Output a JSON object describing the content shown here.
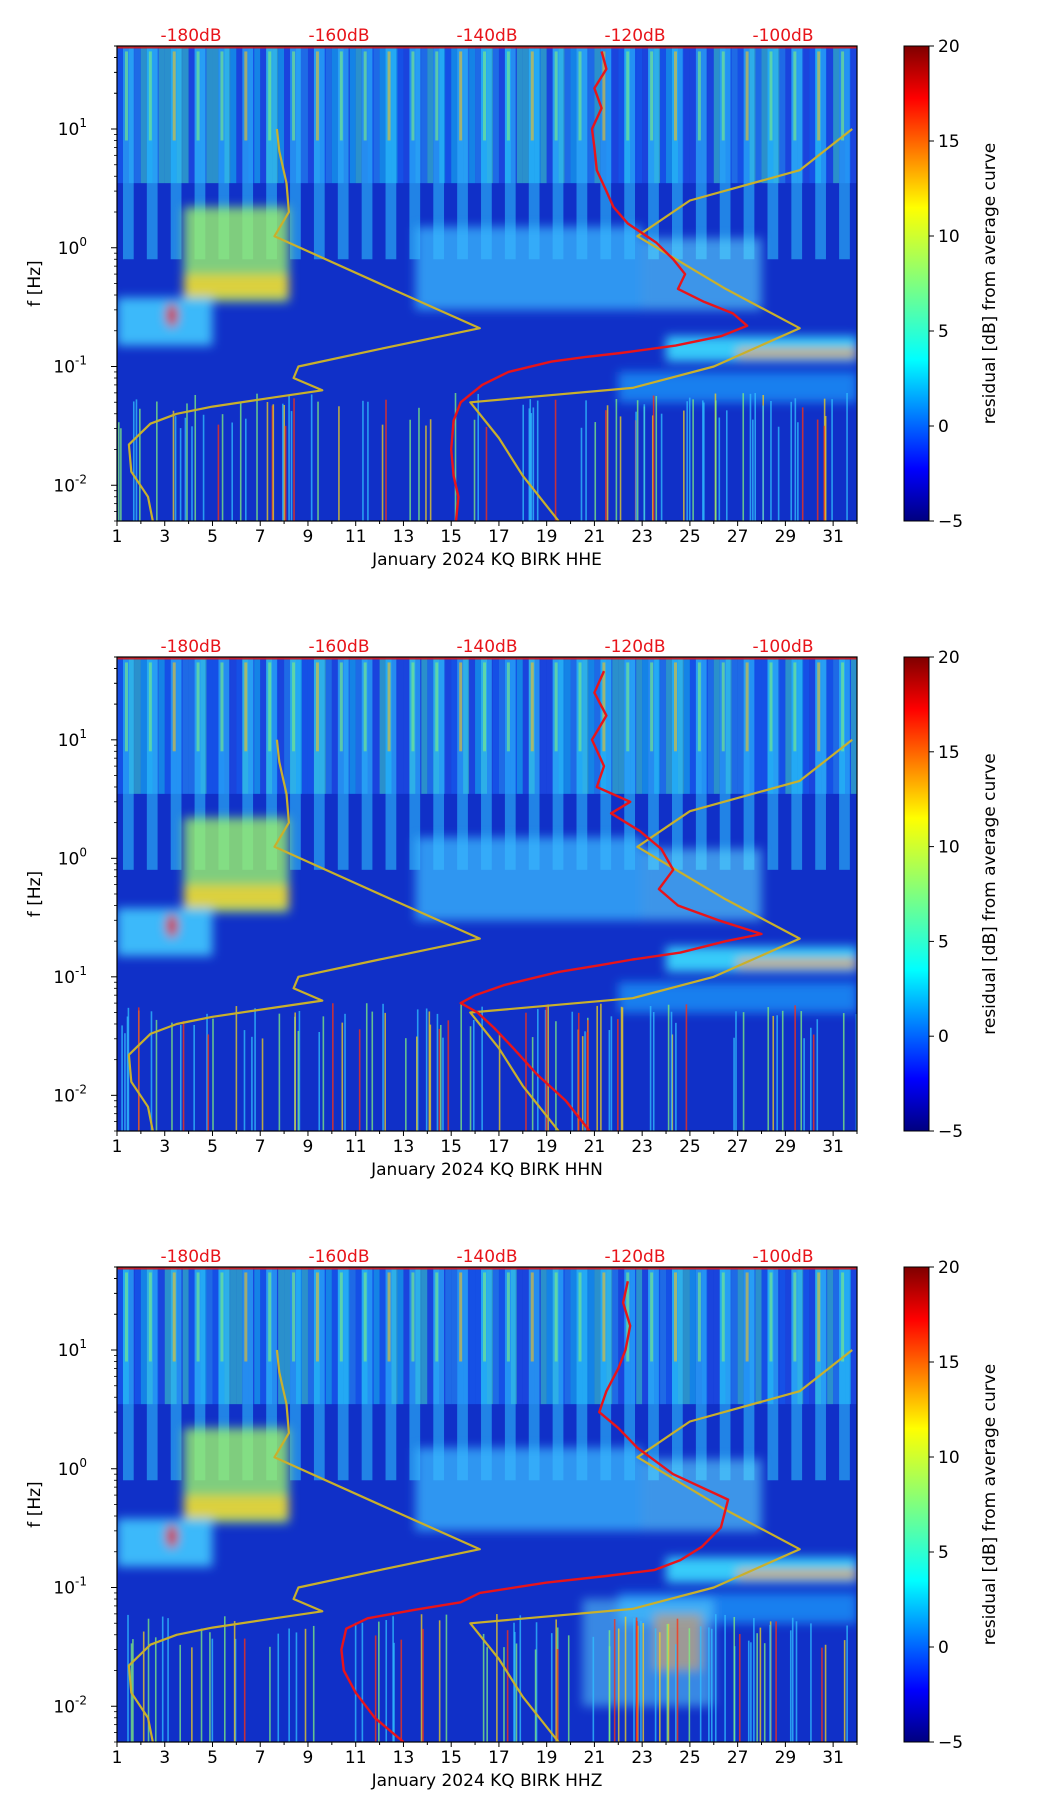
{
  "colors": {
    "db_label": "#e8141a",
    "psd_curve": "#e8141a",
    "model_curve": "#c9b02c",
    "axis": "#000000"
  },
  "chart_data": [
    {
      "type": "heatmap",
      "xlabel": "January 2024 KQ BIRK  HHE",
      "ylabel": "f [Hz]",
      "x_ticks": [
        "1",
        "3",
        "5",
        "7",
        "9",
        "11",
        "13",
        "15",
        "17",
        "19",
        "21",
        "23",
        "25",
        "27",
        "29",
        "31"
      ],
      "x_range": [
        1,
        32
      ],
      "y_ticks": [
        "10^-2",
        "10^-1",
        "10^0",
        "10^1"
      ],
      "y_range": [
        0.005,
        50
      ],
      "y_scale": "log",
      "top_db_labels": [
        "-180dB",
        "-160dB",
        "-140dB",
        "-120dB",
        "-100dB"
      ],
      "top_db_range": [
        -190,
        -90
      ],
      "colorbar": {
        "label": "residual [dB] from average curve",
        "ticks": [
          "20",
          "15",
          "10",
          "5",
          "0",
          "−5"
        ],
        "range": [
          -5,
          20
        ]
      },
      "psd_curve": [
        [
          15.2,
          0.005
        ],
        [
          15.3,
          0.008
        ],
        [
          15.1,
          0.012
        ],
        [
          15.0,
          0.02
        ],
        [
          15.1,
          0.035
        ],
        [
          15.4,
          0.05
        ],
        [
          16.3,
          0.07
        ],
        [
          17.4,
          0.09
        ],
        [
          19.2,
          0.11
        ],
        [
          20.6,
          0.12
        ],
        [
          22.1,
          0.13
        ],
        [
          24.4,
          0.15
        ],
        [
          26.3,
          0.18
        ],
        [
          27.4,
          0.22
        ],
        [
          26.8,
          0.28
        ],
        [
          25.6,
          0.35
        ],
        [
          24.5,
          0.45
        ],
        [
          24.8,
          0.6
        ],
        [
          24.3,
          0.8
        ],
        [
          23.6,
          1.1
        ],
        [
          22.4,
          1.6
        ],
        [
          21.8,
          2.2
        ],
        [
          21.5,
          3.0
        ],
        [
          21.1,
          4.5
        ],
        [
          21.0,
          7
        ],
        [
          20.9,
          10
        ],
        [
          21.3,
          15
        ],
        [
          21.0,
          22
        ],
        [
          21.5,
          32
        ],
        [
          21.3,
          45
        ]
      ],
      "model_curve": [
        [
          2.5,
          0.005
        ],
        [
          2.3,
          0.008
        ],
        [
          1.6,
          0.013
        ],
        [
          1.5,
          0.022
        ],
        [
          2.4,
          0.033
        ],
        [
          3.5,
          0.04
        ],
        [
          5.0,
          0.046
        ],
        [
          7.6,
          0.055
        ],
        [
          9.6,
          0.063
        ],
        [
          8.4,
          0.08
        ],
        [
          8.6,
          0.1
        ],
        [
          12.0,
          0.14
        ],
        [
          16.2,
          0.21
        ],
        [
          12.5,
          0.45
        ],
        [
          7.6,
          1.25
        ],
        [
          8.2,
          2.0
        ],
        [
          8.1,
          3.5
        ],
        [
          7.8,
          6.5
        ],
        [
          7.7,
          10
        ]
      ],
      "model_curve_2": [
        [
          19.5,
          0.005
        ],
        [
          18.0,
          0.012
        ],
        [
          17.0,
          0.025
        ],
        [
          15.8,
          0.05
        ],
        [
          22.6,
          0.066
        ],
        [
          26.0,
          0.1
        ],
        [
          29.6,
          0.21
        ],
        [
          26.5,
          0.45
        ],
        [
          22.8,
          1.25
        ],
        [
          25.0,
          2.5
        ],
        [
          29.6,
          4.5
        ],
        [
          31.8,
          10
        ]
      ]
    },
    {
      "type": "heatmap",
      "xlabel": "January 2024 KQ BIRK  HHN",
      "ylabel": "f [Hz]",
      "x_ticks": [
        "1",
        "3",
        "5",
        "7",
        "9",
        "11",
        "13",
        "15",
        "17",
        "19",
        "21",
        "23",
        "25",
        "27",
        "29",
        "31"
      ],
      "x_range": [
        1,
        32
      ],
      "y_ticks": [
        "10^-2",
        "10^-1",
        "10^0",
        "10^1"
      ],
      "y_range": [
        0.005,
        50
      ],
      "y_scale": "log",
      "top_db_labels": [
        "-180dB",
        "-160dB",
        "-140dB",
        "-120dB",
        "-100dB"
      ],
      "top_db_range": [
        -190,
        -90
      ],
      "colorbar": {
        "label": "residual [dB] from average curve",
        "ticks": [
          "20",
          "15",
          "10",
          "5",
          "0",
          "−5"
        ],
        "range": [
          -5,
          20
        ]
      },
      "psd_curve": [
        [
          20.8,
          0.005
        ],
        [
          19.8,
          0.009
        ],
        [
          18.6,
          0.015
        ],
        [
          17.6,
          0.025
        ],
        [
          16.8,
          0.037
        ],
        [
          16.1,
          0.05
        ],
        [
          15.4,
          0.06
        ],
        [
          16.0,
          0.07
        ],
        [
          17.2,
          0.085
        ],
        [
          19.5,
          0.11
        ],
        [
          21.2,
          0.125
        ],
        [
          22.6,
          0.14
        ],
        [
          24.6,
          0.16
        ],
        [
          26.5,
          0.2
        ],
        [
          28.0,
          0.23
        ],
        [
          26.2,
          0.3
        ],
        [
          24.5,
          0.4
        ],
        [
          23.7,
          0.55
        ],
        [
          24.3,
          0.8
        ],
        [
          23.8,
          1.2
        ],
        [
          22.9,
          1.7
        ],
        [
          21.7,
          2.4
        ],
        [
          22.5,
          3.0
        ],
        [
          21.1,
          4.0
        ],
        [
          21.4,
          6
        ],
        [
          20.9,
          10
        ],
        [
          21.5,
          16
        ],
        [
          21.0,
          25
        ],
        [
          21.4,
          38
        ]
      ],
      "model_curve": [
        [
          2.5,
          0.005
        ],
        [
          2.3,
          0.008
        ],
        [
          1.6,
          0.013
        ],
        [
          1.5,
          0.022
        ],
        [
          2.4,
          0.033
        ],
        [
          3.5,
          0.04
        ],
        [
          5.0,
          0.046
        ],
        [
          7.6,
          0.055
        ],
        [
          9.6,
          0.063
        ],
        [
          8.4,
          0.08
        ],
        [
          8.6,
          0.1
        ],
        [
          12.0,
          0.14
        ],
        [
          16.2,
          0.21
        ],
        [
          12.5,
          0.45
        ],
        [
          7.6,
          1.25
        ],
        [
          8.2,
          2.0
        ],
        [
          8.1,
          3.5
        ],
        [
          7.8,
          6.5
        ],
        [
          7.7,
          10
        ]
      ],
      "model_curve_2": [
        [
          19.5,
          0.005
        ],
        [
          18.0,
          0.012
        ],
        [
          17.0,
          0.025
        ],
        [
          15.8,
          0.05
        ],
        [
          22.6,
          0.066
        ],
        [
          26.0,
          0.1
        ],
        [
          29.6,
          0.21
        ],
        [
          26.5,
          0.45
        ],
        [
          22.8,
          1.25
        ],
        [
          25.0,
          2.5
        ],
        [
          29.6,
          4.5
        ],
        [
          31.8,
          10
        ]
      ]
    },
    {
      "type": "heatmap",
      "xlabel": "January 2024 KQ BIRK  HHZ",
      "ylabel": "f [Hz]",
      "x_ticks": [
        "1",
        "3",
        "5",
        "7",
        "9",
        "11",
        "13",
        "15",
        "17",
        "19",
        "21",
        "23",
        "25",
        "27",
        "29",
        "31"
      ],
      "x_range": [
        1,
        32
      ],
      "y_ticks": [
        "10^-2",
        "10^-1",
        "10^0",
        "10^1"
      ],
      "y_range": [
        0.005,
        50
      ],
      "y_scale": "log",
      "top_db_labels": [
        "-180dB",
        "-160dB",
        "-140dB",
        "-120dB",
        "-100dB"
      ],
      "top_db_range": [
        -190,
        -90
      ],
      "colorbar": {
        "label": "residual [dB] from average curve",
        "ticks": [
          "20",
          "15",
          "10",
          "5",
          "0",
          "−5"
        ],
        "range": [
          -5,
          20
        ]
      },
      "psd_curve": [
        [
          13.0,
          0.005
        ],
        [
          11.8,
          0.008
        ],
        [
          11.0,
          0.013
        ],
        [
          10.5,
          0.02
        ],
        [
          10.4,
          0.03
        ],
        [
          10.6,
          0.045
        ],
        [
          11.5,
          0.055
        ],
        [
          13.5,
          0.065
        ],
        [
          15.4,
          0.075
        ],
        [
          16.2,
          0.09
        ],
        [
          19.0,
          0.11
        ],
        [
          21.5,
          0.125
        ],
        [
          23.5,
          0.14
        ],
        [
          24.6,
          0.17
        ],
        [
          25.5,
          0.22
        ],
        [
          26.3,
          0.32
        ],
        [
          26.6,
          0.55
        ],
        [
          24.3,
          0.9
        ],
        [
          22.8,
          1.5
        ],
        [
          22.0,
          2.2
        ],
        [
          21.2,
          3.0
        ],
        [
          21.5,
          4.5
        ],
        [
          22.0,
          7
        ],
        [
          22.3,
          10
        ],
        [
          22.5,
          16
        ],
        [
          22.2,
          25
        ],
        [
          22.4,
          38
        ]
      ],
      "model_curve": [
        [
          2.5,
          0.005
        ],
        [
          2.3,
          0.008
        ],
        [
          1.6,
          0.013
        ],
        [
          1.5,
          0.022
        ],
        [
          2.4,
          0.033
        ],
        [
          3.5,
          0.04
        ],
        [
          5.0,
          0.046
        ],
        [
          7.6,
          0.055
        ],
        [
          9.6,
          0.063
        ],
        [
          8.4,
          0.08
        ],
        [
          8.6,
          0.1
        ],
        [
          12.0,
          0.14
        ],
        [
          16.2,
          0.21
        ],
        [
          12.5,
          0.45
        ],
        [
          7.6,
          1.25
        ],
        [
          8.2,
          2.0
        ],
        [
          8.1,
          3.5
        ],
        [
          7.8,
          6.5
        ],
        [
          7.7,
          10
        ]
      ],
      "model_curve_2": [
        [
          19.5,
          0.005
        ],
        [
          18.0,
          0.012
        ],
        [
          17.0,
          0.025
        ],
        [
          15.8,
          0.05
        ],
        [
          22.6,
          0.066
        ],
        [
          26.0,
          0.1
        ],
        [
          29.6,
          0.21
        ],
        [
          26.5,
          0.45
        ],
        [
          22.8,
          1.25
        ],
        [
          25.0,
          2.5
        ],
        [
          29.6,
          4.5
        ],
        [
          31.8,
          10
        ]
      ]
    }
  ]
}
